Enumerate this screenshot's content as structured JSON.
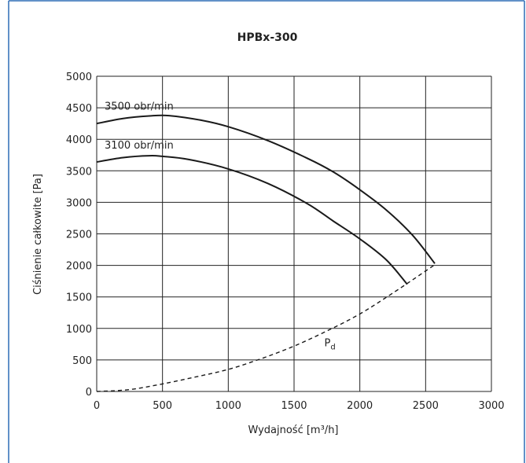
{
  "chart_data": {
    "type": "line",
    "title": "HPBx-300",
    "xlabel": "Wydajność [m³/h]",
    "ylabel": "Ciśnienie całkowite [Pa]",
    "xlim": [
      0,
      3000
    ],
    "ylim": [
      0,
      5000
    ],
    "x_ticks": [
      0,
      500,
      1000,
      1500,
      2000,
      2500,
      3000
    ],
    "y_ticks": [
      0,
      500,
      1000,
      1500,
      2000,
      2500,
      3000,
      3500,
      4000,
      4500,
      5000
    ],
    "grid": true,
    "series": [
      {
        "name": "3500 obr/min",
        "style": "solid",
        "x": [
          0,
          200,
          400,
          550,
          800,
          1000,
          1300,
          1600,
          1800,
          2000,
          2200,
          2400,
          2570
        ],
        "y": [
          4250,
          4330,
          4370,
          4375,
          4300,
          4200,
          3980,
          3700,
          3480,
          3200,
          2880,
          2480,
          2030
        ]
      },
      {
        "name": "3100 obr/min",
        "style": "solid",
        "x": [
          0,
          200,
          400,
          500,
          700,
          1000,
          1300,
          1600,
          1800,
          2000,
          2200,
          2360
        ],
        "y": [
          3640,
          3710,
          3740,
          3730,
          3680,
          3530,
          3300,
          2980,
          2700,
          2420,
          2090,
          1700
        ]
      },
      {
        "name": "Pd",
        "style": "dashed",
        "x": [
          0,
          250,
          500,
          750,
          1000,
          1250,
          1500,
          1750,
          2000,
          2250,
          2570
        ],
        "y": [
          0,
          30,
          120,
          230,
          350,
          520,
          720,
          960,
          1230,
          1560,
          2010
        ]
      }
    ],
    "annotations": [
      {
        "text": "3500 obr/min",
        "x": 60,
        "y": 4470
      },
      {
        "text": "3100 obr/min",
        "x": 60,
        "y": 3850
      },
      {
        "text": "P",
        "sub": "d",
        "x": 1730,
        "y": 720
      }
    ],
    "line_color": "#1a1a1a",
    "frame_color": "#2f6db5"
  }
}
